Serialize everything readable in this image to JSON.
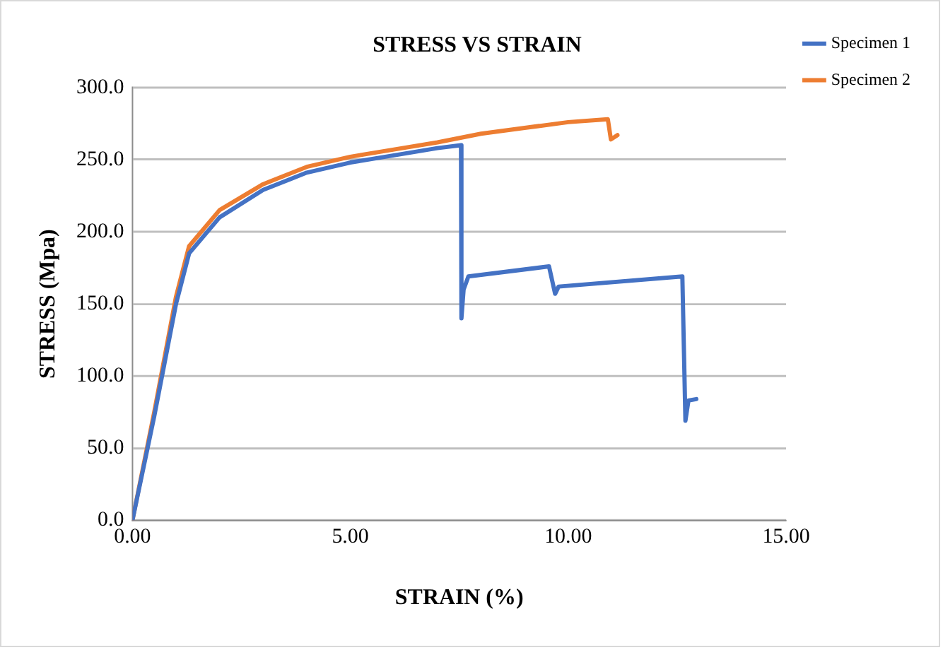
{
  "chart_data": {
    "type": "line",
    "title": "STRESS VS STRAIN",
    "xlabel": "STRAIN (%)",
    "ylabel": "STRESS (Mpa)",
    "xlim": [
      0,
      15
    ],
    "ylim": [
      0,
      300
    ],
    "xticks": [
      {
        "value": 0,
        "label": "0.00"
      },
      {
        "value": 5,
        "label": "5.00"
      },
      {
        "value": 10,
        "label": "10.00"
      },
      {
        "value": 15,
        "label": "15.00"
      }
    ],
    "yticks": [
      {
        "value": 0,
        "label": "0.0"
      },
      {
        "value": 50,
        "label": "50.0"
      },
      {
        "value": 100,
        "label": "100.0"
      },
      {
        "value": 150,
        "label": "150.0"
      },
      {
        "value": 200,
        "label": "200.0"
      },
      {
        "value": 250,
        "label": "250.0"
      },
      {
        "value": 300,
        "label": "300.0"
      }
    ],
    "grid": "y",
    "legend": "right",
    "marker": "none",
    "line_style": "solid",
    "series": [
      {
        "name": "Specimen 1",
        "color": "#4472c4",
        "x": [
          0,
          0.5,
          1.0,
          1.3,
          2,
          3,
          4,
          5,
          6,
          7,
          7.54,
          7.55,
          7.6,
          7.71,
          9.56,
          9.7,
          9.78,
          12.62,
          12.69,
          12.76,
          12.94
        ],
        "values": [
          0,
          72,
          150,
          185,
          210,
          229,
          241,
          248,
          253,
          258,
          260,
          140,
          160,
          169,
          176,
          157,
          162,
          169,
          69,
          83,
          84
        ]
      },
      {
        "name": "Specimen 2",
        "color": "#ed7d31",
        "x": [
          0,
          0.5,
          1.0,
          1.3,
          2,
          3,
          4,
          5,
          6,
          7,
          8,
          9,
          10,
          10.91,
          10.98,
          11.13
        ],
        "values": [
          0,
          75,
          155,
          190,
          215,
          233,
          245,
          252,
          257,
          262,
          268,
          272,
          276,
          278,
          264,
          267
        ]
      }
    ]
  }
}
